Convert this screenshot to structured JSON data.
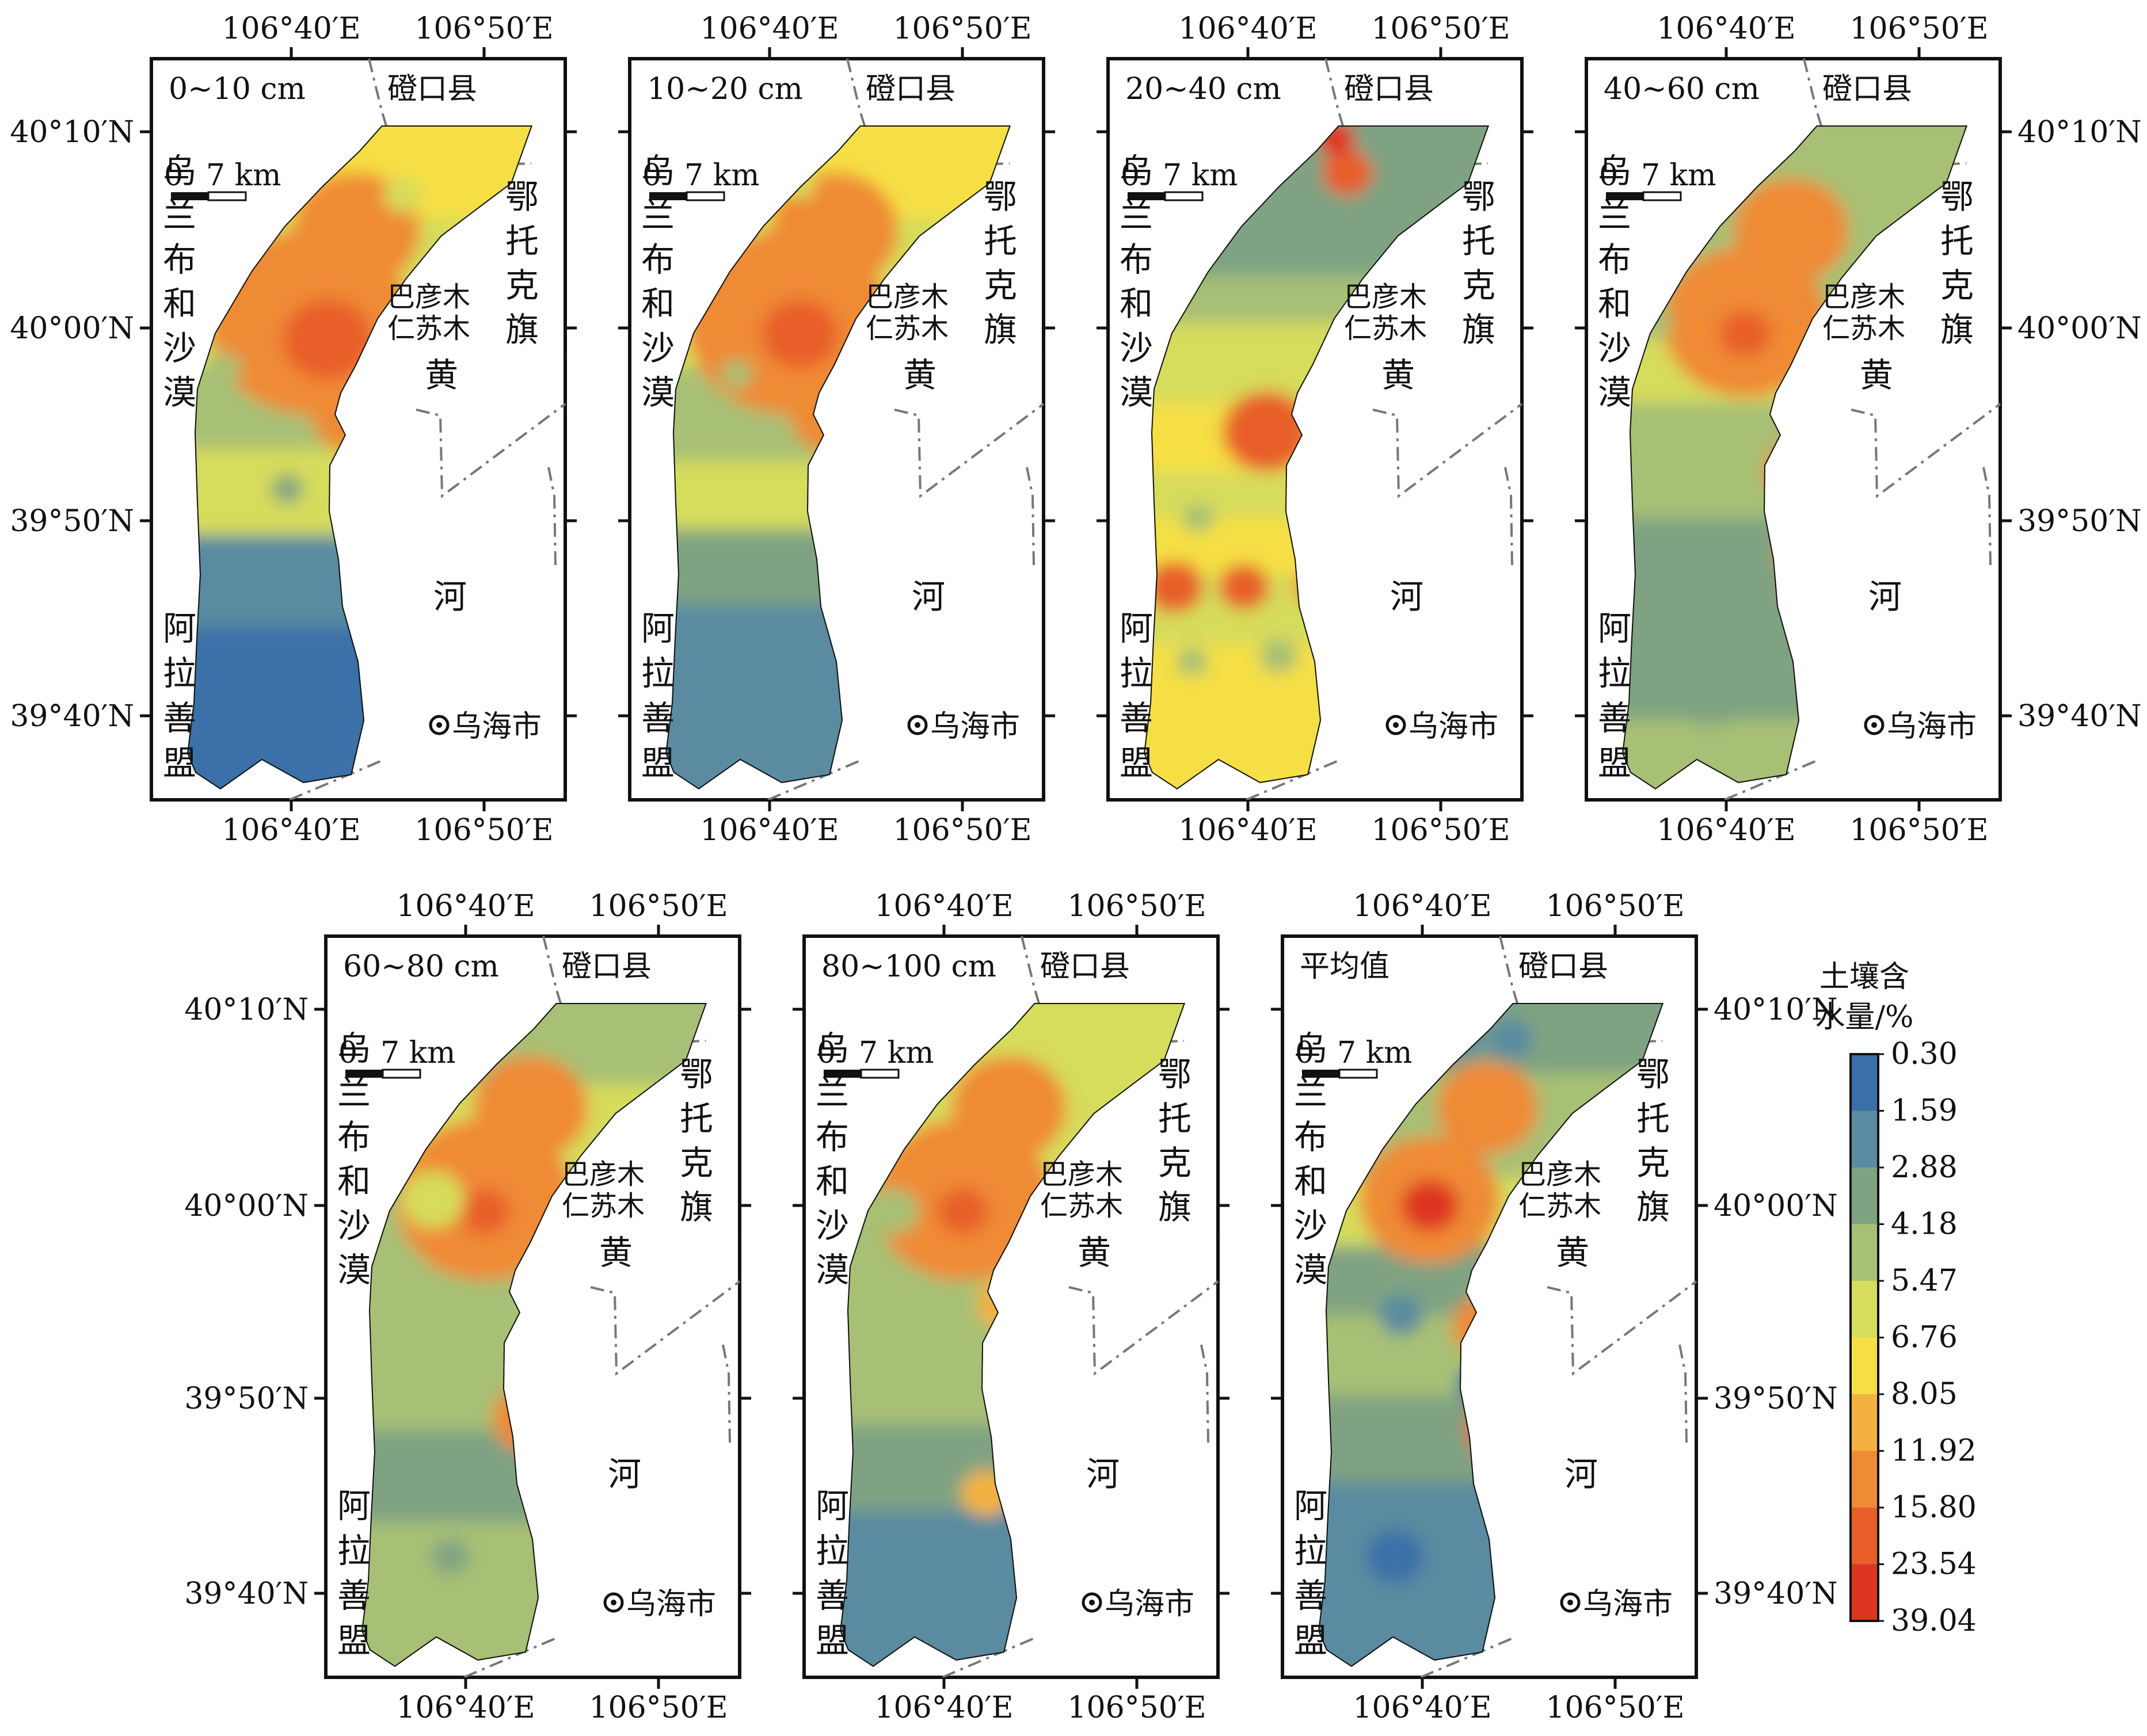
{
  "coord_labels": {
    "lon_40": "106°40′E",
    "lon_50": "106°50′E",
    "lat_10": "40°10′N",
    "lat_00": "40°00′N",
    "lat_50": "39°50′N",
    "lat_40": "39°40′N"
  },
  "place_names": {
    "dengkou": "磴口县",
    "ulan_buh": [
      "乌",
      "兰",
      "布",
      "和",
      "沙",
      "漠"
    ],
    "ordos": [
      "鄂",
      "托",
      "克",
      "旗"
    ],
    "alxa": [
      "阿",
      "拉",
      "善",
      "盟"
    ],
    "bayan_line1": "巴彦木",
    "bayan_line2": "仁苏木",
    "huang": "黄",
    "he": "河",
    "wuhai": "乌海市"
  },
  "scale_bar": {
    "zero": "0",
    "length": "7 km"
  },
  "panels": [
    {
      "id": "p1",
      "label": "0~10 cm"
    },
    {
      "id": "p2",
      "label": "10~20 cm"
    },
    {
      "id": "p3",
      "label": "20~40 cm"
    },
    {
      "id": "p4",
      "label": "40~60 cm"
    },
    {
      "id": "p5",
      "label": "60~80 cm"
    },
    {
      "id": "p6",
      "label": "80~100 cm"
    },
    {
      "id": "p7",
      "label": "平均值"
    }
  ],
  "legend": {
    "title_line1": "土壤含",
    "title_line2": "水量/%",
    "ticks": [
      "0.30",
      "1.59",
      "2.88",
      "4.18",
      "5.47",
      "6.76",
      "8.05",
      "11.92",
      "15.80",
      "23.54",
      "39.04"
    ],
    "colors": [
      "#3a6fa8",
      "#5a8ba0",
      "#7fa382",
      "#a7c074",
      "#d6dc5c",
      "#f5df44",
      "#f3b240",
      "#ef8a35",
      "#e85f2a",
      "#de3523"
    ]
  }
}
